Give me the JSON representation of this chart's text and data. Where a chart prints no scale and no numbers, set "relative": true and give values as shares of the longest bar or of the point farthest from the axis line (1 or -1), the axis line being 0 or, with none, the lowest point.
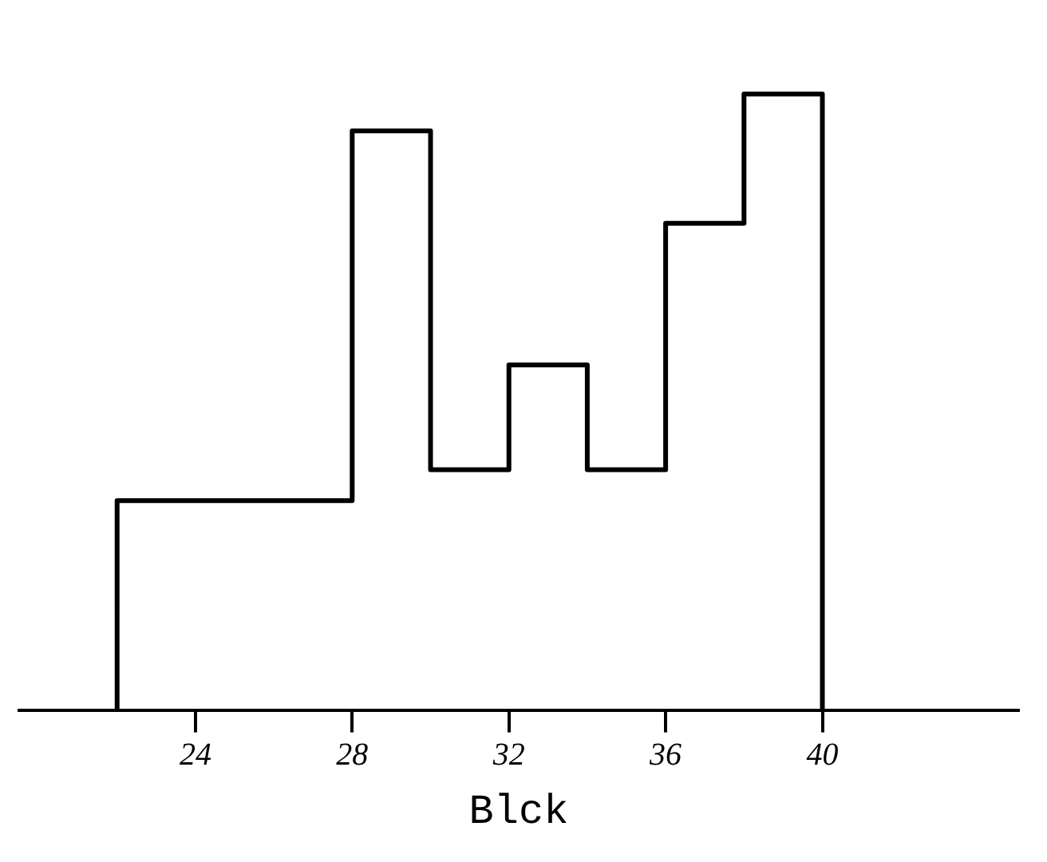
{
  "chart_data": {
    "type": "step",
    "xlabel": "Blck",
    "x": [
      22,
      22,
      28,
      30,
      32,
      34,
      36,
      38,
      40
    ],
    "values": [
      0,
      0.34,
      0.94,
      0.39,
      0.56,
      0.39,
      0.79,
      1,
      0
    ],
    "color": "#000000",
    "relative": true,
    "xlim": [
      19.5,
      45
    ],
    "xticks": [
      24,
      28,
      32,
      36,
      40
    ],
    "grid": false,
    "legend": false,
    "marker": "none"
  }
}
